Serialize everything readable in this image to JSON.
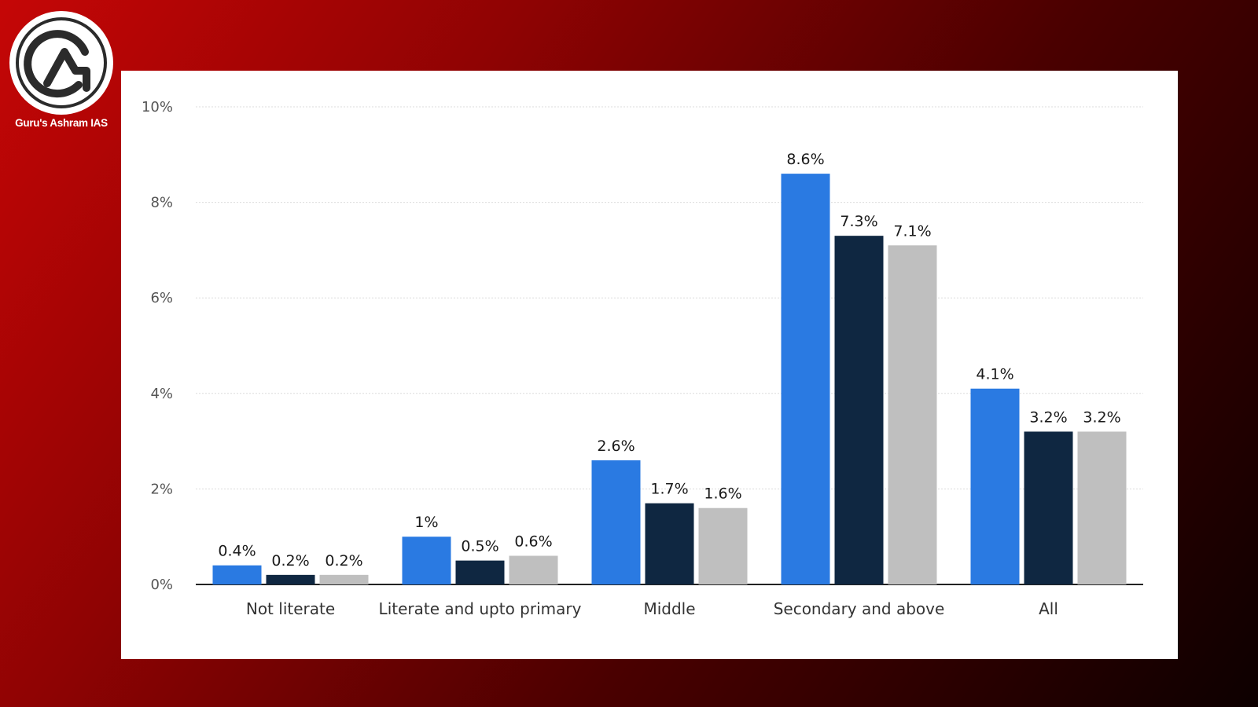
{
  "brand": {
    "logo_text": "Guru's Ashram IAS",
    "logo_icon": "ga-monogram-icon"
  },
  "colors": {
    "background_start": "#c50606",
    "background_end": "#0d0000",
    "series": [
      "#2a7ae2",
      "#0f2741",
      "#bfbfbf"
    ]
  },
  "chart_data": {
    "type": "bar",
    "title": "",
    "xlabel": "",
    "ylabel": "",
    "ylim": [
      0,
      10
    ],
    "yticks": [
      "0%",
      "2%",
      "4%",
      "6%",
      "8%",
      "10%"
    ],
    "grid": true,
    "legend": "none",
    "categories": [
      "Not literate",
      "Literate and upto primary",
      "Middle",
      "Secondary and above",
      "All"
    ],
    "series": [
      {
        "values": [
          0.4,
          1,
          2.6,
          8.6,
          4.1
        ],
        "labels": [
          "0.4%",
          "1%",
          "2.6%",
          "8.6%",
          "4.1%"
        ]
      },
      {
        "values": [
          0.2,
          0.5,
          1.7,
          7.3,
          3.2
        ],
        "labels": [
          "0.2%",
          "0.5%",
          "1.7%",
          "7.3%",
          "3.2%"
        ]
      },
      {
        "values": [
          0.2,
          0.6,
          1.6,
          7.1,
          3.2
        ],
        "labels": [
          "0.2%",
          "0.6%",
          "1.6%",
          "7.1%",
          "3.2%"
        ]
      }
    ]
  }
}
